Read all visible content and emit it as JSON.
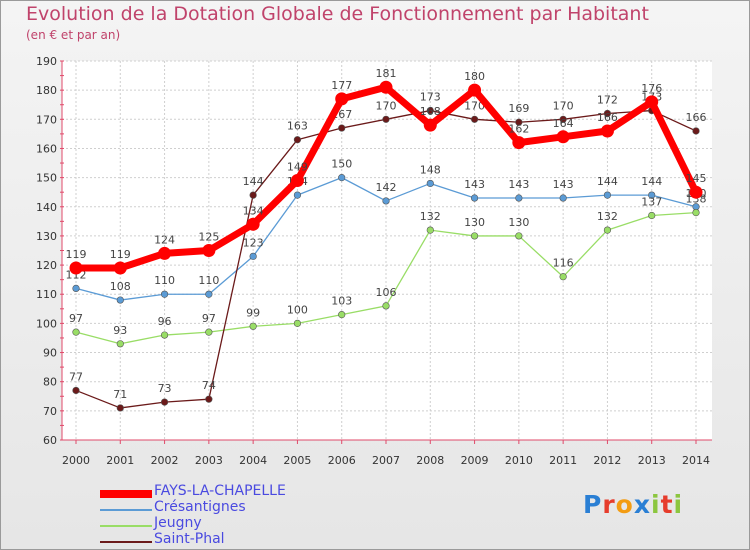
{
  "header": {
    "title": "Evolution de la Dotation Globale de Fonctionnement par Habitant",
    "subtitle": "(en € et par an)"
  },
  "logo": {
    "text": "Proxiti",
    "colors": [
      "#2a7fd4",
      "#e63c2c",
      "#f39c12",
      "#2a7fd4",
      "#8cc63f",
      "#e63c2c",
      "#8cc63f"
    ]
  },
  "chart_data": {
    "type": "line",
    "title": "Evolution de la Dotation Globale de Fonctionnement par Habitant",
    "subtitle": "(en € et par an)",
    "xlabel": "",
    "ylabel": "",
    "ylim": [
      60,
      190
    ],
    "yticks": [
      60,
      70,
      80,
      90,
      100,
      110,
      120,
      130,
      140,
      150,
      160,
      170,
      180,
      190
    ],
    "grid": true,
    "legend_position": "bottom-left",
    "categories": [
      "2000",
      "2001",
      "2002",
      "2003",
      "2004",
      "2005",
      "2006",
      "2007",
      "2008",
      "2009",
      "2010",
      "2011",
      "2012",
      "2013",
      "2014"
    ],
    "series": [
      {
        "name": "FAYS-LA-CHAPELLE",
        "color": "#ff0000",
        "values": [
          119,
          119,
          124,
          125,
          134,
          149,
          177,
          181,
          168,
          180,
          162,
          164,
          166,
          176,
          145
        ]
      },
      {
        "name": "Crésantignes",
        "color": "#5b9bd5",
        "values": [
          112,
          108,
          110,
          110,
          123,
          144,
          150,
          142,
          148,
          143,
          143,
          143,
          144,
          144,
          140
        ]
      },
      {
        "name": "Jeugny",
        "color": "#99dd66",
        "values": [
          97,
          93,
          96,
          97,
          99,
          100,
          103,
          106,
          132,
          130,
          130,
          116,
          132,
          137,
          138
        ]
      },
      {
        "name": "Saint-Phal",
        "color": "#6b1a1a",
        "values": [
          77,
          71,
          73,
          74,
          144,
          163,
          167,
          170,
          173,
          170,
          169,
          170,
          172,
          173,
          166
        ]
      }
    ]
  }
}
